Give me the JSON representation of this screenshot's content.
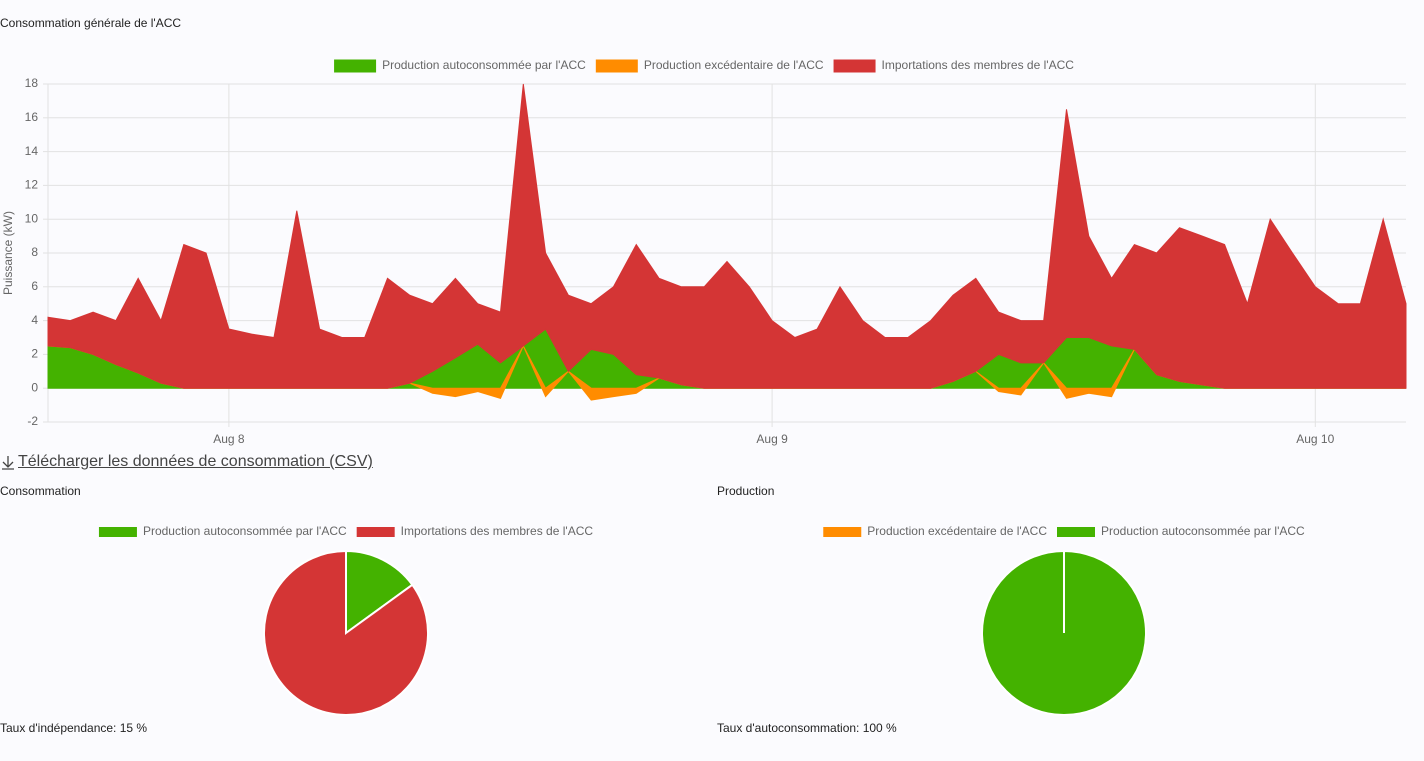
{
  "download_link": "Télécharger les données de consommation (CSV)",
  "chart_data": [
    {
      "type": "area",
      "stacked": true,
      "title": "Consommation générale de l'ACC",
      "y_label": "Puissance (kW)",
      "legend": "top",
      "grid": true,
      "x": [
        7.667,
        7.708,
        7.75,
        7.792,
        7.833,
        7.875,
        7.917,
        7.958,
        8,
        8.042,
        8.083,
        8.125,
        8.167,
        8.208,
        8.25,
        8.292,
        8.333,
        8.375,
        8.417,
        8.458,
        8.5,
        8.542,
        8.583,
        8.625,
        8.667,
        8.708,
        8.75,
        8.792,
        8.833,
        8.875,
        8.917,
        8.958,
        9,
        9.042,
        9.083,
        9.125,
        9.167,
        9.208,
        9.25,
        9.292,
        9.333,
        9.375,
        9.417,
        9.458,
        9.5,
        9.542,
        9.583,
        9.625,
        9.667,
        9.708,
        9.75,
        9.792,
        9.833,
        9.875,
        9.917,
        9.958,
        10,
        10.042,
        10.083,
        10.125,
        10.167
      ],
      "xlim": [
        7.667,
        10.167
      ],
      "xticks": [
        {
          "value": 8,
          "label": "Aug 8"
        },
        {
          "value": 9,
          "label": "Aug 9"
        },
        {
          "value": 10,
          "label": "Aug 10"
        }
      ],
      "ylim": [
        -2,
        18
      ],
      "yticks": [
        -2,
        0,
        2,
        4,
        6,
        8,
        10,
        12,
        14,
        16,
        18
      ],
      "series": [
        {
          "name": "Production autoconsommée par l'ACC",
          "color": "#44b200",
          "values": [
            2.5,
            2.4,
            2.0,
            1.4,
            0.9,
            0.3,
            0,
            0,
            0,
            0,
            0,
            0,
            0,
            0,
            0,
            0,
            0.3,
            1.0,
            1.8,
            2.6,
            1.5,
            2.5,
            3.5,
            1.0,
            2.3,
            2.0,
            0.8,
            0.6,
            0.2,
            0,
            0,
            0,
            0,
            0,
            0,
            0,
            0,
            0,
            0,
            0,
            0.4,
            1.0,
            2.0,
            1.5,
            1.5,
            3.0,
            3.0,
            2.5,
            2.3,
            0.8,
            0.4,
            0.2,
            0,
            0,
            0,
            0,
            0,
            0,
            0,
            0,
            0
          ]
        },
        {
          "name": "Production excédentaire de l'ACC",
          "color": "#ff8c00",
          "values": [
            0,
            0,
            0,
            0,
            0,
            0,
            0,
            0,
            0,
            0,
            0,
            0,
            0,
            0,
            0,
            0,
            0,
            -0.3,
            -0.5,
            -0.2,
            -0.6,
            0,
            -0.5,
            0,
            -0.7,
            -0.5,
            -0.3,
            0,
            0,
            0,
            0,
            0,
            0,
            0,
            0,
            0,
            0,
            0,
            0,
            0,
            0,
            0,
            -0.2,
            -0.4,
            0,
            -0.6,
            -0.3,
            -0.5,
            0,
            0,
            0,
            0,
            0,
            0,
            0,
            0,
            0,
            0,
            0,
            0,
            0
          ]
        },
        {
          "name": "Importations des membres de l'ACC",
          "color": "#d43535",
          "values": [
            1.7,
            1.6,
            2.5,
            2.6,
            5.6,
            3.7,
            8.5,
            8.0,
            3.5,
            3.2,
            3.0,
            10.5,
            3.5,
            3.0,
            3.0,
            6.5,
            5.2,
            4.0,
            4.7,
            2.4,
            3.0,
            15.5,
            4.5,
            4.5,
            2.7,
            4.0,
            7.7,
            5.9,
            5.8,
            6.0,
            7.5,
            6.0,
            4.0,
            3.0,
            3.5,
            6.0,
            4.0,
            3.0,
            3.0,
            4.0,
            5.1,
            5.5,
            2.5,
            2.5,
            2.5,
            13.5,
            6.0,
            4.0,
            6.2,
            7.2,
            9.1,
            8.8,
            8.5,
            5.0,
            10.0,
            8.0,
            6.0,
            5.0,
            5.0,
            10.0,
            5.0
          ]
        }
      ]
    },
    {
      "type": "pie",
      "title": "Consommation",
      "legend": "top",
      "categories": [
        "Production autoconsommée par l'ACC",
        "Importations des membres de l'ACC"
      ],
      "colors": [
        "#44b200",
        "#d43535"
      ],
      "values": [
        15,
        85
      ],
      "note": "Taux d'indépendance: 15 %"
    },
    {
      "type": "pie",
      "title": "Production",
      "legend": "top",
      "categories": [
        "Production excédentaire de l'ACC",
        "Production autoconsommée par l'ACC"
      ],
      "colors": [
        "#ff8c00",
        "#44b200"
      ],
      "values": [
        0,
        100
      ],
      "note": "Taux d'autoconsommation: 100 %"
    }
  ]
}
